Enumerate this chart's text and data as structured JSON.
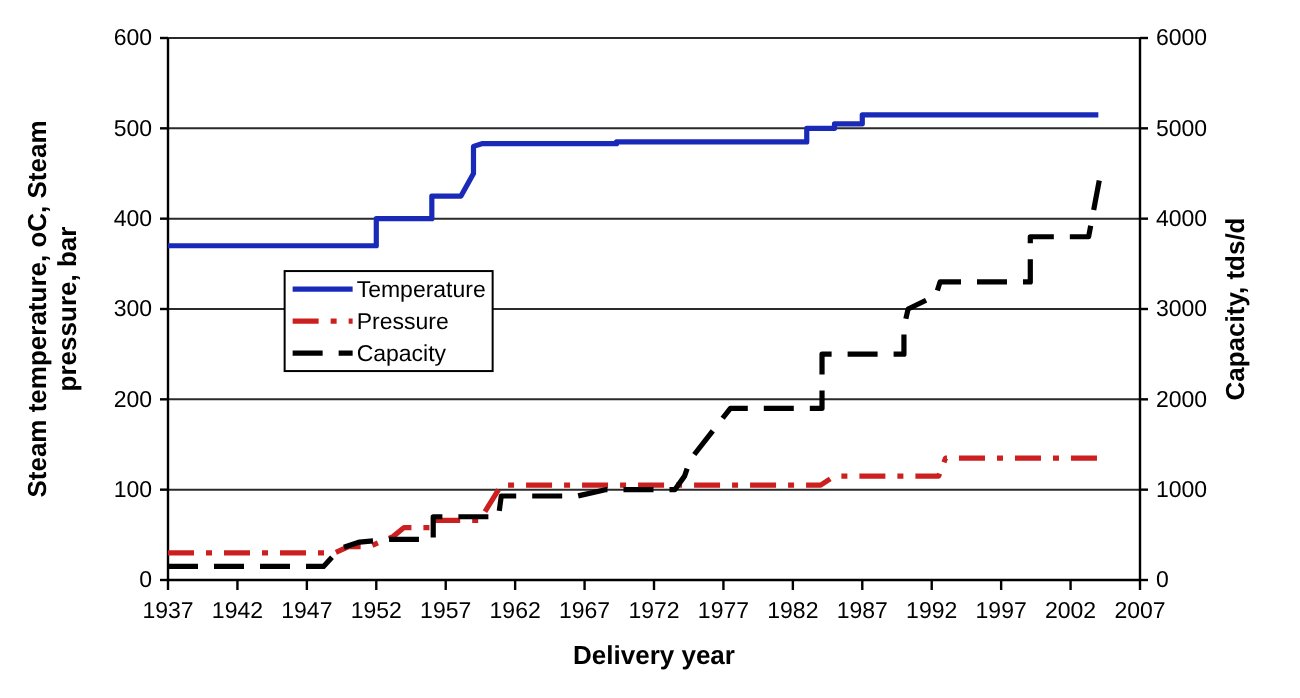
{
  "chart_data": {
    "type": "line",
    "xlabel": "Delivery year",
    "ylabel": "Steam temperature, oC, Steam pressure, bar",
    "y2label": "Capacity, tds/d",
    "xlim": [
      1937,
      2007
    ],
    "xticks": [
      1937,
      1942,
      1947,
      1952,
      1957,
      1962,
      1967,
      1972,
      1977,
      1982,
      1987,
      1992,
      1997,
      2002,
      2007
    ],
    "ylim": [
      0,
      600
    ],
    "yticks": [
      0,
      100,
      200,
      300,
      400,
      500,
      600
    ],
    "y2lim": [
      0,
      6000
    ],
    "y2ticks": [
      0,
      1000,
      2000,
      3000,
      4000,
      5000,
      6000
    ],
    "grid": "y",
    "legend": "left",
    "series": [
      {
        "name": "Temperature",
        "color": "#1a2ab8",
        "line_style": "solid",
        "x": [
          1937,
          1952,
          1952,
          1956,
          1956,
          1958.1,
          1959,
          1959,
          1959.6,
          1969.3,
          1969.3,
          1983,
          1983,
          1985,
          1985,
          1987,
          1987,
          2004
        ],
        "values": [
          370,
          370,
          400,
          400,
          425,
          425,
          450,
          480,
          483,
          483,
          485,
          485,
          500,
          500,
          505,
          505,
          515,
          515
        ]
      },
      {
        "name": "Pressure",
        "color": "#cc2020",
        "line_style": "dashdot",
        "x": [
          1937,
          1949,
          1950,
          1951.5,
          1953.2,
          1954,
          1956,
          1956,
          1959.5,
          1959.8,
          1961,
          1984,
          1985,
          1992.5,
          1993,
          2004
        ],
        "values": [
          30,
          30,
          37,
          37,
          48,
          58,
          58,
          66,
          66,
          75,
          105,
          105,
          115,
          115,
          135,
          135
        ]
      },
      {
        "name": "Capacity",
        "color": "#000000",
        "line_style": "dashed",
        "axis": "y2",
        "x": [
          1937,
          1948.2,
          1949.4,
          1950.8,
          1953,
          1956.1,
          1956.1,
          1960.8,
          1961,
          1966.5,
          1968.5,
          1973.5,
          1974.2,
          1974.6,
          1977.5,
          1984.1,
          1984.1,
          1990,
          1990,
          1990.3,
          1992.3,
          1992.6,
          1999.1,
          1999.1,
          2003.3,
          2004.1
        ],
        "values": [
          150,
          150,
          350,
          420,
          450,
          450,
          700,
          700,
          930,
          930,
          1000,
          1000,
          1150,
          1330,
          1900,
          1900,
          2500,
          2500,
          2800,
          3000,
          3150,
          3300,
          3300,
          3800,
          3800,
          4450
        ]
      }
    ]
  }
}
